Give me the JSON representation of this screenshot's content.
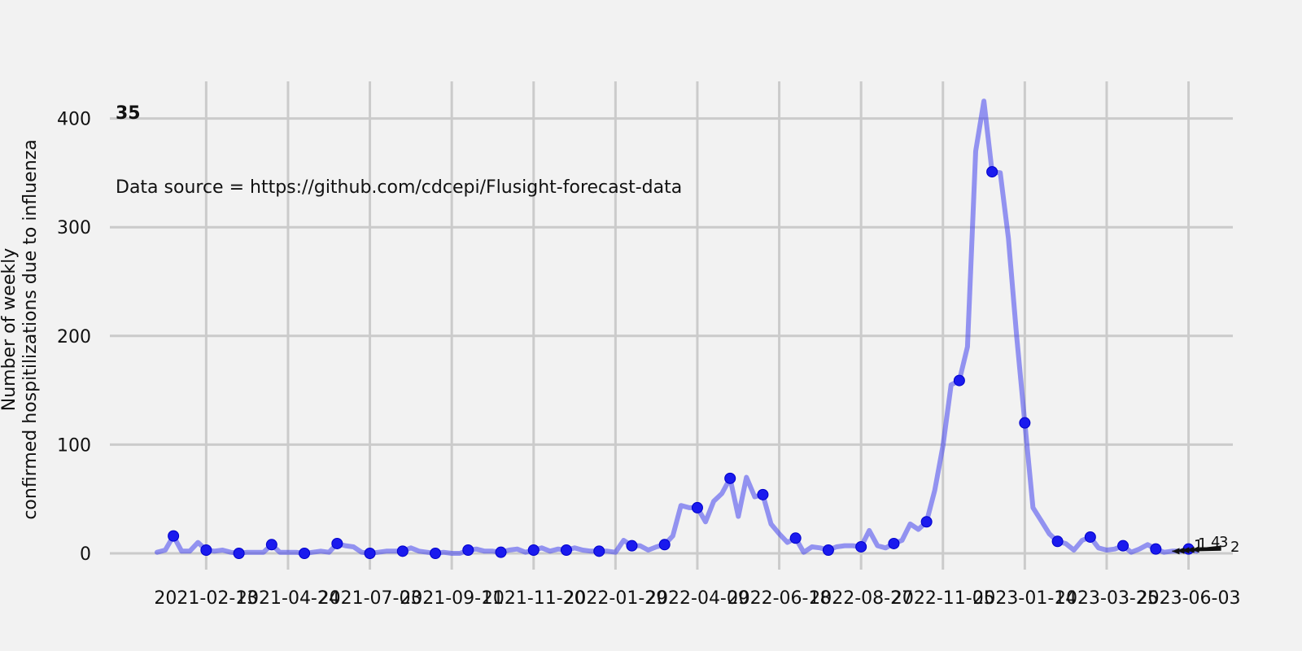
{
  "chart_data": {
    "type": "line",
    "title": "",
    "panel_label": "35",
    "annotation": "Data source = https://github.com/cdcepi/Flusight-forecast-data",
    "xlabel": "",
    "ylabel_lines": [
      "Number of weekly",
      "confirmed hospitilizations due to influenza"
    ],
    "ylim": [
      -15,
      425
    ],
    "yticks": [
      0,
      100,
      200,
      300,
      400
    ],
    "x_start": "2021-01-02",
    "xticks": [
      {
        "label": "2021-02-13",
        "week": 6
      },
      {
        "label": "2021-04-24",
        "week": 16
      },
      {
        "label": "2021-07-03",
        "week": 26
      },
      {
        "label": "2021-09-11",
        "week": 36
      },
      {
        "label": "2021-11-20",
        "week": 46
      },
      {
        "label": "2022-01-29",
        "week": 56
      },
      {
        "label": "2022-04-09",
        "week": 66
      },
      {
        "label": "2022-06-18",
        "week": 76
      },
      {
        "label": "2022-08-27",
        "week": 86
      },
      {
        "label": "2022-11-05",
        "week": 96
      },
      {
        "label": "2023-01-14",
        "week": 106
      },
      {
        "label": "2023-03-25",
        "week": 116
      },
      {
        "label": "2023-06-03",
        "week": 126
      }
    ],
    "series": [
      {
        "color": "#4444ee",
        "values": [
          1,
          3,
          16,
          2,
          2,
          10,
          3,
          2,
          3,
          1,
          0,
          1,
          1,
          1,
          8,
          1,
          1,
          1,
          0,
          1,
          2,
          1,
          9,
          7,
          6,
          1,
          0,
          1,
          2,
          2,
          2,
          5,
          2,
          1,
          0,
          1,
          0,
          0,
          3,
          4,
          2,
          2,
          1,
          3,
          4,
          1,
          3,
          5,
          2,
          4,
          3,
          5,
          3,
          2,
          2,
          2,
          1,
          12,
          7,
          7,
          3,
          6,
          8,
          16,
          44,
          42,
          42,
          29,
          48,
          55,
          69,
          34,
          70,
          52,
          54,
          27,
          18,
          10,
          14,
          1,
          6,
          5,
          3,
          6,
          7,
          7,
          6,
          21,
          7,
          5,
          9,
          12,
          27,
          22,
          29,
          58,
          99,
          155,
          159,
          190,
          370,
          416,
          351,
          350,
          290,
          200,
          120,
          42,
          30,
          18,
          11,
          9,
          3,
          12,
          15,
          5,
          3,
          4,
          7,
          1,
          4,
          8,
          4,
          1,
          2,
          2,
          4,
          2
        ],
        "marker_every": 4
      }
    ],
    "forecast_labels": [
      "1",
      "1",
      "4",
      "3",
      "2"
    ]
  }
}
